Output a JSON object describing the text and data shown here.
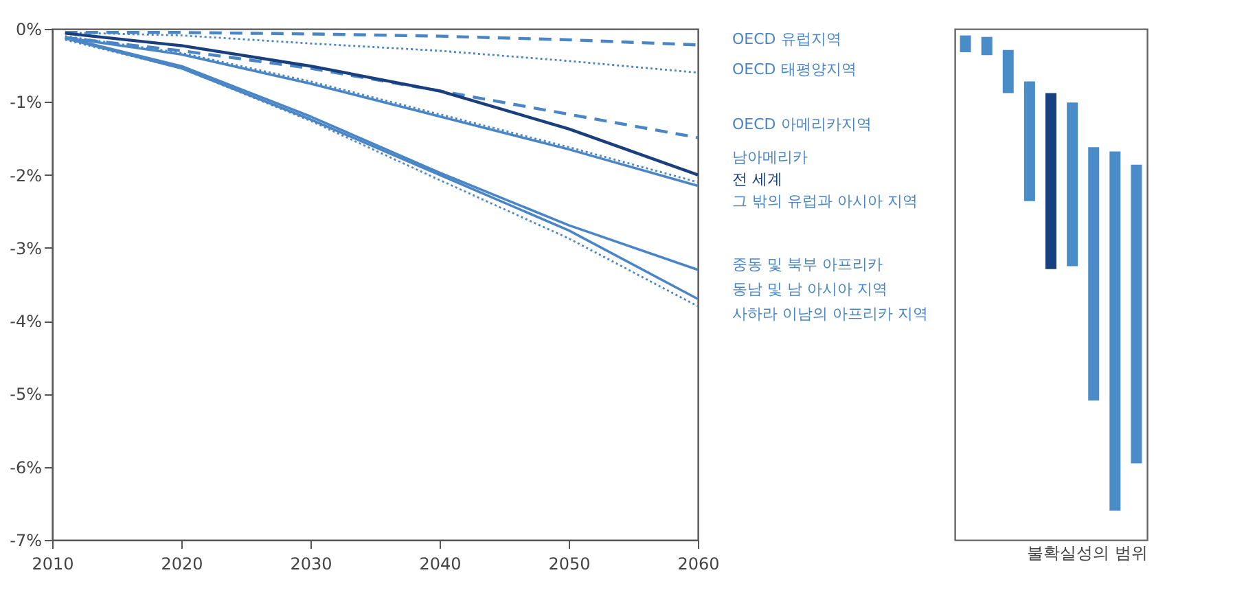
{
  "chart_data": [
    {
      "type": "line",
      "xlim": [
        2010,
        2060
      ],
      "xticks": [
        2010,
        2020,
        2030,
        2040,
        2050,
        2060
      ],
      "ylim": [
        -7,
        0
      ],
      "yticks": [
        {
          "value": 0,
          "label": "0%"
        },
        {
          "value": -1,
          "label": "-1%"
        },
        {
          "value": -2,
          "label": "-2%"
        },
        {
          "value": -3,
          "label": "-3%"
        },
        {
          "value": -4,
          "label": "-4%"
        },
        {
          "value": -5,
          "label": "-5%"
        },
        {
          "value": -6,
          "label": "-6%"
        },
        {
          "value": -7,
          "label": "-7%"
        }
      ],
      "x": [
        2011,
        2020,
        2030,
        2040,
        2050,
        2060
      ],
      "grid": false,
      "marker": "none",
      "series": [
        {
          "name": "OECD 유럽지역",
          "color": "#4a86c5",
          "line_style": "dashed",
          "values": [
            -0.05,
            -0.05,
            -0.07,
            -0.1,
            -0.15,
            -0.22
          ]
        },
        {
          "name": "OECD 태평양지역",
          "color": "#4a86c5",
          "line_style": "dotted",
          "values": [
            -0.05,
            -0.09,
            -0.2,
            -0.3,
            -0.44,
            -0.6
          ]
        },
        {
          "name": "OECD 아메리카지역",
          "color": "#4a86c5",
          "line_style": "dashed",
          "values": [
            -0.12,
            -0.3,
            -0.54,
            -0.85,
            -1.17,
            -1.49
          ]
        },
        {
          "name": "남아메리카",
          "color": "#4a86c5",
          "line_style": "dotted",
          "values": [
            -0.1,
            -0.33,
            -0.72,
            -1.17,
            -1.62,
            -2.1
          ]
        },
        {
          "name": "전 세계",
          "color": "#1b3f7c",
          "line_style": "solid",
          "values": [
            -0.06,
            -0.23,
            -0.51,
            -0.85,
            -1.37,
            -2.0
          ]
        },
        {
          "name": "그 밖의 유럽과 아시아 지역",
          "color": "#4a86c5",
          "line_style": "solid",
          "values": [
            -0.12,
            -0.35,
            -0.75,
            -1.2,
            -1.65,
            -2.15
          ]
        },
        {
          "name": "중동 및 북부 아프리카",
          "color": "#4a86c5",
          "line_style": "solid",
          "values": [
            -0.12,
            -0.51,
            -1.2,
            -1.97,
            -2.69,
            -3.3
          ]
        },
        {
          "name": "동남 및 남 아시아 지역",
          "color": "#4a86c5",
          "line_style": "solid",
          "values": [
            -0.13,
            -0.54,
            -1.24,
            -2.0,
            -2.76,
            -3.7
          ]
        },
        {
          "name": "사하라 이남의 아프리카 지역",
          "color": "#4a86c5",
          "line_style": "dotted",
          "values": [
            -0.15,
            -0.54,
            -1.26,
            -2.07,
            -2.87,
            -3.8
          ]
        }
      ]
    },
    {
      "type": "bar",
      "xlabel": "불확실성의 범위",
      "categories": [
        null,
        null,
        null,
        null,
        null,
        null,
        null,
        null,
        null
      ],
      "ylim": [
        -7,
        0
      ],
      "tick_labels": false,
      "grid": false,
      "base": [
        -0.09,
        -0.11,
        -0.29,
        -0.72,
        -0.88,
        -1.01,
        -1.62,
        -1.68,
        -1.86
      ],
      "values": [
        -0.23,
        -0.25,
        -0.59,
        -1.64,
        -2.41,
        -2.24,
        -3.47,
        -4.92,
        -4.09
      ],
      "colors": [
        "#4a8cc8",
        "#4a8cc8",
        "#4a8cc8",
        "#4a8cc8",
        "#16407e",
        "#4a8cc8",
        "#4a8cc8",
        "#4a8cc8",
        "#4a8cc8"
      ]
    }
  ]
}
